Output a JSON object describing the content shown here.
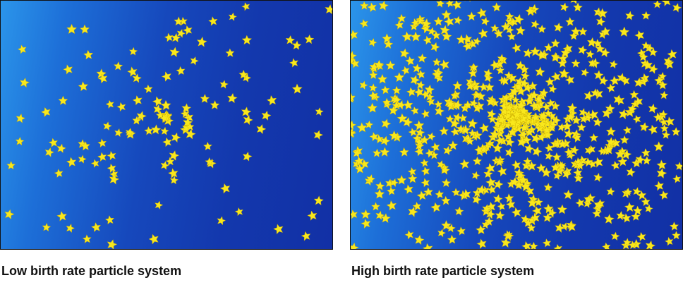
{
  "figures": [
    {
      "caption": "Low birth rate particle system",
      "density": "low"
    },
    {
      "caption": "High birth rate particle system",
      "density": "high"
    }
  ],
  "colors": {
    "star": "#f8e71c",
    "background_light": "#2b95ea",
    "background_dark": "#1230a5"
  },
  "icons": {
    "particle": "star-icon"
  }
}
